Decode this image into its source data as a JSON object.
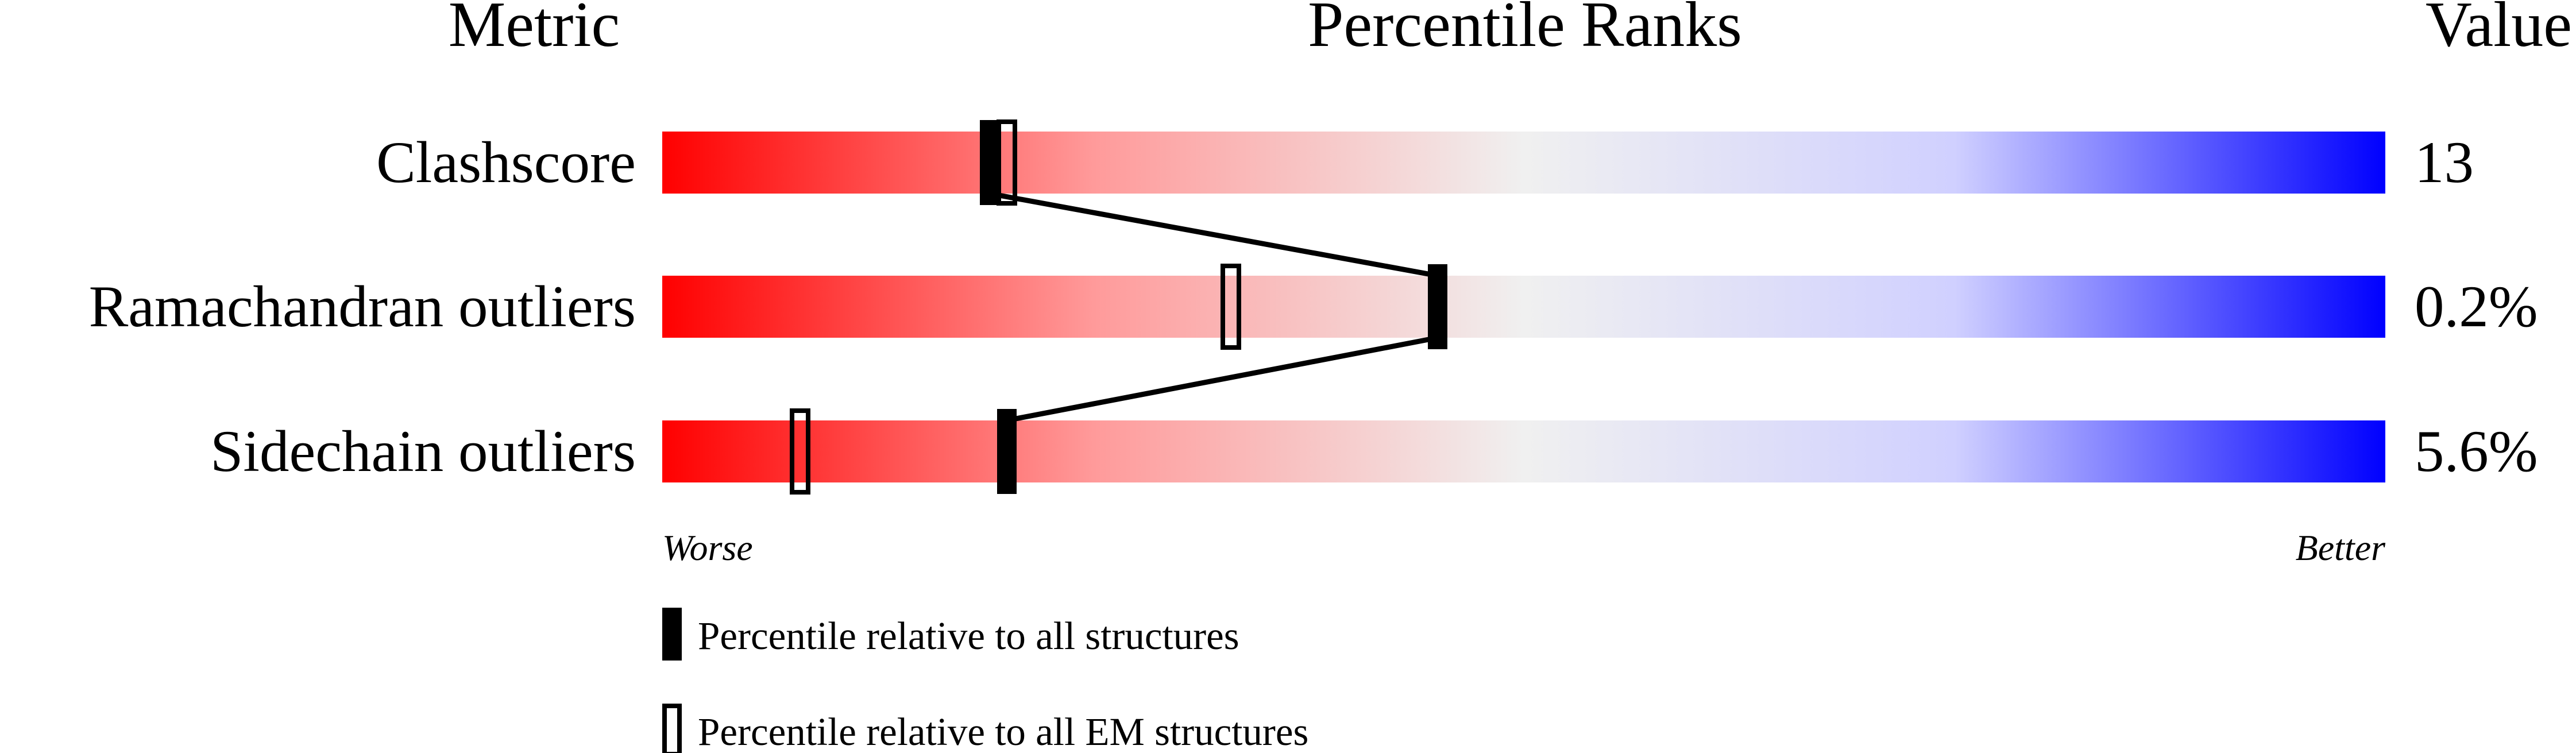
{
  "chart_data": {
    "type": "percentile-rank",
    "headers": {
      "metric": "Metric",
      "percentile": "Percentile Ranks",
      "value": "Value"
    },
    "xlim": [
      0,
      100
    ],
    "axis_labels": {
      "left": "Worse",
      "right": "Better"
    },
    "colors": {
      "worse": "#ff0000",
      "middle": "#f0f0f0",
      "better": "#0000ff",
      "marker": "#000000"
    },
    "metrics": [
      {
        "label": "Clashscore",
        "value": "13",
        "percentile_all": 19,
        "percentile_em": 20
      },
      {
        "label": "Ramachandran outliers",
        "value": "0.2%",
        "percentile_all": 45,
        "percentile_em": 33
      },
      {
        "label": "Sidechain outliers",
        "value": "5.6%",
        "percentile_all": 20,
        "percentile_em": 8
      }
    ],
    "legend": [
      {
        "marker": "filled",
        "label": "Percentile relative to all structures"
      },
      {
        "marker": "open",
        "label": "Percentile relative to all EM structures"
      }
    ]
  }
}
